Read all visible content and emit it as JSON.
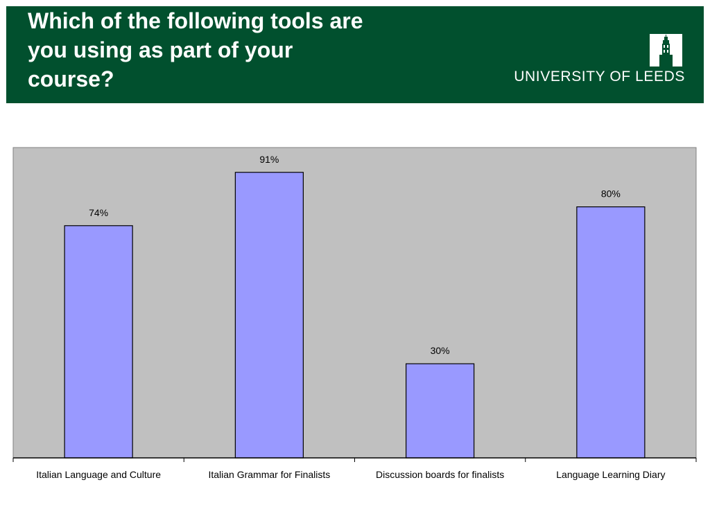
{
  "header": {
    "title": "Which of the following tools are\nyou using as part of your\ncourse?",
    "logo_text": "UNIVERSITY OF LEEDS",
    "logo_icon": "university-tower-crest"
  },
  "colors": {
    "header_bg": "#01502e",
    "plot_bg": "#c0c0c0",
    "bar_fill": "#9999ff",
    "bar_stroke": "#000000"
  },
  "chart_data": {
    "type": "bar",
    "categories": [
      "Italian Language and Culture",
      "Italian Grammar for Finalists",
      "Discussion boards for finalists",
      "Language Learning Diary"
    ],
    "values": [
      74,
      91,
      30,
      80
    ],
    "data_labels": [
      "74%",
      "91%",
      "30%",
      "80%"
    ],
    "ylim": [
      0,
      100
    ],
    "grid": false,
    "legend": "none"
  }
}
